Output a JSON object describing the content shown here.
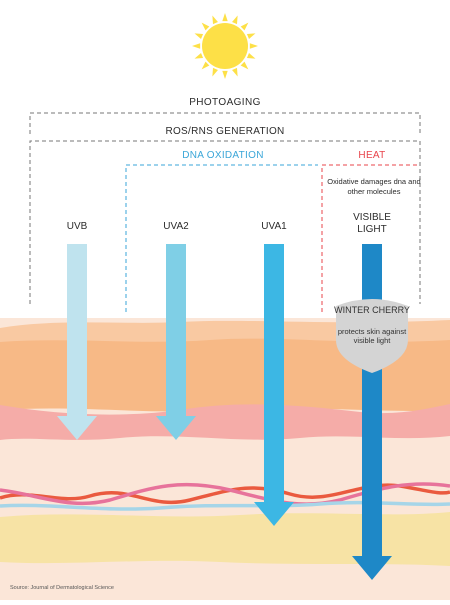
{
  "labels": {
    "photoaging": "PHOTOAGING",
    "ros_rns": "ROS/RNS GENERATION",
    "dna_oxidation": "DNA OXIDATION",
    "heat": "HEAT",
    "oxidative_note": "Oxidative damages dna and other molecules",
    "uvb": "UVB",
    "uva2": "UVA2",
    "uva1": "UVA1",
    "visible_light": "VISIBLE LIGHT",
    "winter_cherry": "WINTER CHERRY",
    "winter_cherry_desc": "protects skin against visible light",
    "source": "Source: Journal of Dermatological Science"
  },
  "colors": {
    "sun": "#fde047",
    "dna_oxidation": "#3aa6d8",
    "heat": "#e8444b",
    "uvb_arrow": "#bfe3ee",
    "uva2_arrow": "#7fcfe6",
    "uva1_arrow": "#3cb7e4",
    "visible_arrow": "#1e88c7",
    "skin_base": "#fbe6d8",
    "skin_orange": "#f7b986",
    "skin_pink": "#f5aca8",
    "skin_yellow": "#f7e3a5",
    "shield": "#d4d4d4",
    "fiber_red": "#ea5a3f",
    "fiber_pink": "#e7739b",
    "fiber_blue": "#a6d5e8"
  },
  "icons": [
    "sun-icon",
    "shield-icon"
  ]
}
